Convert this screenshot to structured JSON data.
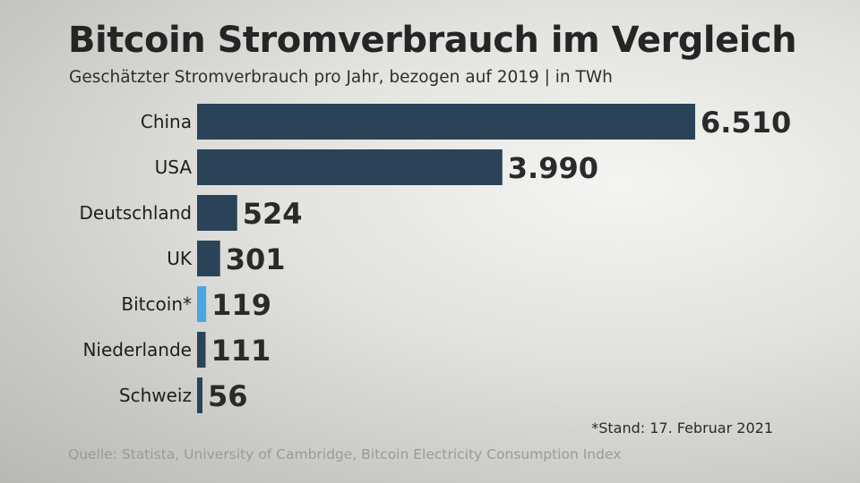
{
  "chart_data": {
    "type": "bar",
    "orientation": "horizontal",
    "title": "Bitcoin Stromverbrauch im Vergleich",
    "subtitle": "Geschätzter Stromverbrauch pro Jahr, bezogen auf 2019 | in TWh",
    "categories": [
      "China",
      "USA",
      "Deutschland",
      "UK",
      "Bitcoin*",
      "Niederlande",
      "Schweiz"
    ],
    "values": [
      6510,
      3990,
      524,
      301,
      119,
      111,
      56
    ],
    "value_labels": [
      "6.510",
      "3.990",
      "524",
      "301",
      "119",
      "111",
      "56"
    ],
    "highlight": "Bitcoin*",
    "xlim": [
      0,
      6510
    ],
    "xlabel": "",
    "ylabel": "",
    "grid": false
  },
  "colors": {
    "bar": "#2a4358",
    "highlight": "#4aa6e0"
  },
  "note": "*Stand: 17. Februar 2021",
  "source": "Quelle: Statista, University of Cambridge, Bitcoin Electricity Consumption Index"
}
